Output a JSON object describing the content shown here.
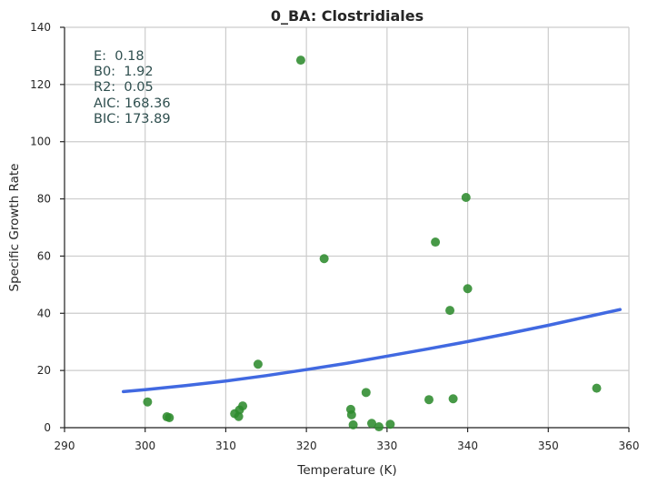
{
  "chart_data": {
    "type": "scatter",
    "title": "0_BA: Clostridiales",
    "xlabel": "Temperature (K)",
    "ylabel": "Specific Growth Rate",
    "xlim": [
      290,
      360
    ],
    "ylim": [
      0,
      140
    ],
    "xticks": [
      "290",
      "300",
      "310",
      "320",
      "330",
      "340",
      "350",
      "360"
    ],
    "yticks": [
      "0",
      "20",
      "40",
      "60",
      "80",
      "100",
      "120",
      "140"
    ],
    "grid": true,
    "colors": {
      "points": "#2e8b2e",
      "fit": "#4169e1",
      "grid": "#cccccc",
      "axis": "#262626",
      "stats": "#2f4f4f"
    },
    "points": [
      {
        "x": 300.3,
        "y": 9
      },
      {
        "x": 302.7,
        "y": 3.8
      },
      {
        "x": 303.0,
        "y": 3.5
      },
      {
        "x": 311.1,
        "y": 4.9
      },
      {
        "x": 311.6,
        "y": 3.9
      },
      {
        "x": 311.7,
        "y": 6.2
      },
      {
        "x": 312.1,
        "y": 7.6
      },
      {
        "x": 314.0,
        "y": 22.2
      },
      {
        "x": 319.3,
        "y": 128.5
      },
      {
        "x": 322.2,
        "y": 59.1
      },
      {
        "x": 325.5,
        "y": 6.4
      },
      {
        "x": 325.6,
        "y": 4.5
      },
      {
        "x": 325.8,
        "y": 1.0
      },
      {
        "x": 327.4,
        "y": 12.3
      },
      {
        "x": 328.1,
        "y": 1.5
      },
      {
        "x": 329.0,
        "y": 0.3
      },
      {
        "x": 330.4,
        "y": 1.2
      },
      {
        "x": 335.2,
        "y": 9.8
      },
      {
        "x": 336.0,
        "y": 64.9
      },
      {
        "x": 337.8,
        "y": 41.0
      },
      {
        "x": 338.2,
        "y": 10.1
      },
      {
        "x": 339.8,
        "y": 80.5
      },
      {
        "x": 340.0,
        "y": 48.6
      },
      {
        "x": 356.0,
        "y": 13.8
      }
    ],
    "fit_curve": {
      "x": [
        297.3,
        300,
        305,
        310,
        315,
        320,
        325,
        330,
        335,
        340,
        345,
        350,
        355,
        358.9
      ],
      "y": [
        12.6,
        13.3,
        14.7,
        16.3,
        18.2,
        20.3,
        22.5,
        25.0,
        27.5,
        30.1,
        32.9,
        35.8,
        38.9,
        41.3
      ]
    },
    "stats": [
      "E:  0.18",
      "B0:  1.92",
      "R2:  0.05",
      "AIC: 168.36",
      "BIC: 173.89"
    ]
  }
}
